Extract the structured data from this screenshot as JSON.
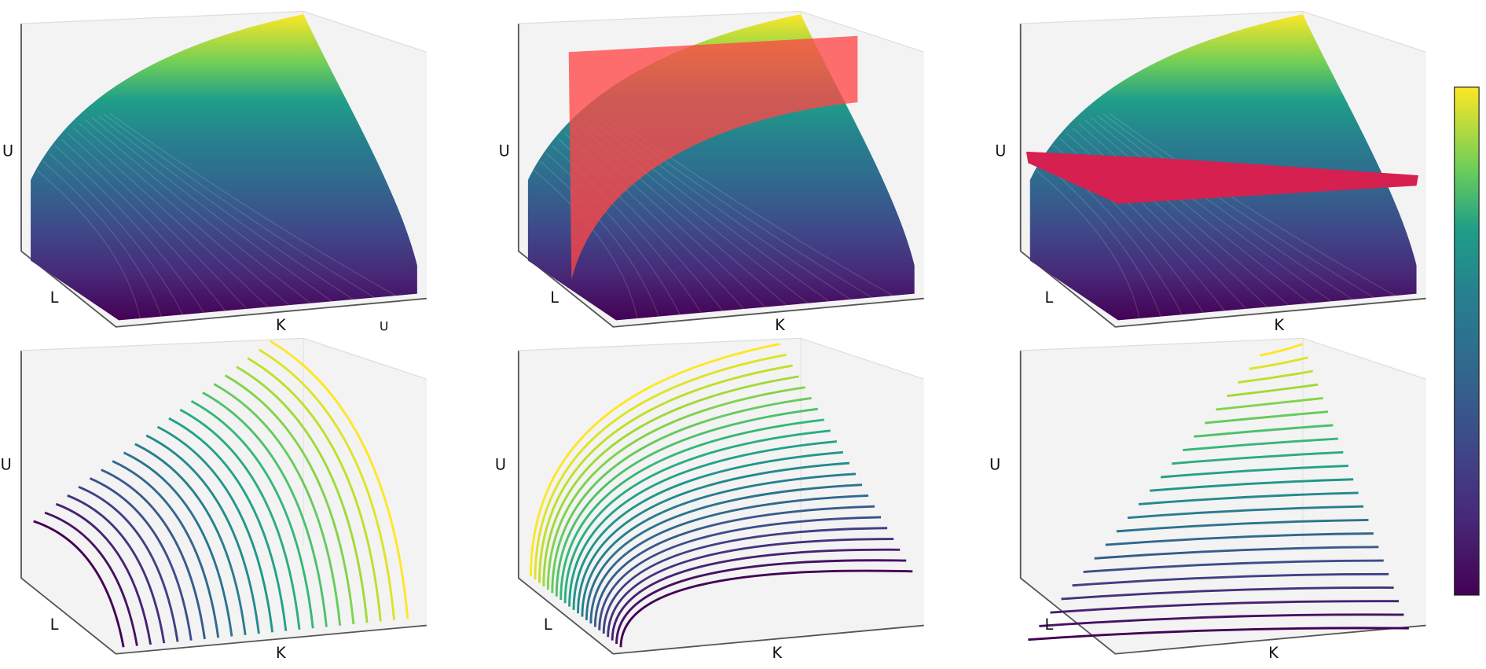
{
  "panels": [
    {
      "axis_labels": {
        "u": "U",
        "l": "L",
        "k": "K"
      },
      "extra_label": "U"
    },
    {
      "axis_labels": {
        "u": "U",
        "l": "L",
        "k": "K"
      }
    },
    {
      "axis_labels": {
        "u": "U",
        "l": "L",
        "k": "K"
      }
    },
    {
      "axis_labels": {
        "u": "U",
        "l": "L",
        "k": "K"
      }
    },
    {
      "axis_labels": {
        "u": "U",
        "l": "L",
        "k": "K"
      }
    },
    {
      "axis_labels": {
        "u": "U",
        "l": "L",
        "k": "K"
      }
    }
  ]
}
